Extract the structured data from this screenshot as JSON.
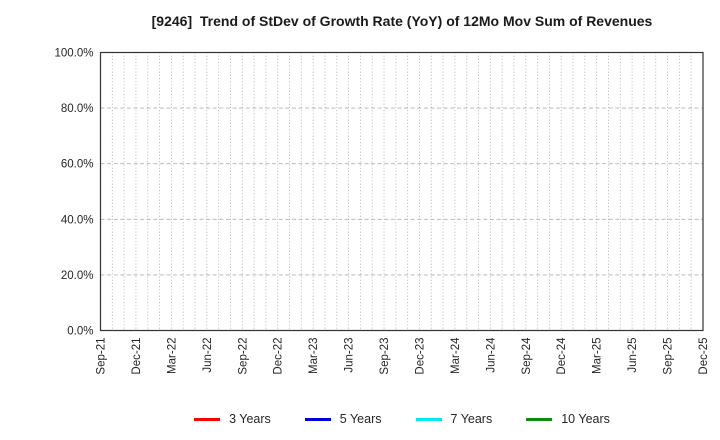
{
  "title": "[9246]  Trend of StDev of Growth Rate (YoY) of 12Mo Mov Sum of Revenues",
  "chart_data": {
    "type": "line",
    "title": "[9246]  Trend of StDev of Growth Rate (YoY) of 12Mo Mov Sum of Revenues",
    "xlabel": "",
    "ylabel": "",
    "ylim": [
      0,
      100
    ],
    "y_ticks": [
      0,
      20,
      40,
      60,
      80,
      100
    ],
    "y_tick_labels": [
      "0.0%",
      "20.0%",
      "40.0%",
      "60.0%",
      "80.0%",
      "100.0%"
    ],
    "x_tick_labels": [
      "Sep-21",
      "Dec-21",
      "Mar-22",
      "Jun-22",
      "Sep-22",
      "Dec-22",
      "Mar-23",
      "Jun-23",
      "Sep-23",
      "Dec-23",
      "Mar-24",
      "Jun-24",
      "Sep-24",
      "Dec-24",
      "Mar-25",
      "Jun-25",
      "Sep-25",
      "Dec-25"
    ],
    "x_minor_divisions": 51,
    "x_label_every_n_minor": 3,
    "grid": true,
    "legend_position": "bottom-center",
    "series": [
      {
        "name": "3 Years",
        "color": "#ff0000",
        "values": []
      },
      {
        "name": "5 Years",
        "color": "#0000dd",
        "values": []
      },
      {
        "name": "7 Years",
        "color": "#00eaee",
        "values": []
      },
      {
        "name": "10 Years",
        "color": "#0e8c0e",
        "values": []
      }
    ]
  },
  "style_colors": {
    "axis_border": "#333333",
    "gridline": "#b0b0b0",
    "tick_label": "#262626"
  }
}
